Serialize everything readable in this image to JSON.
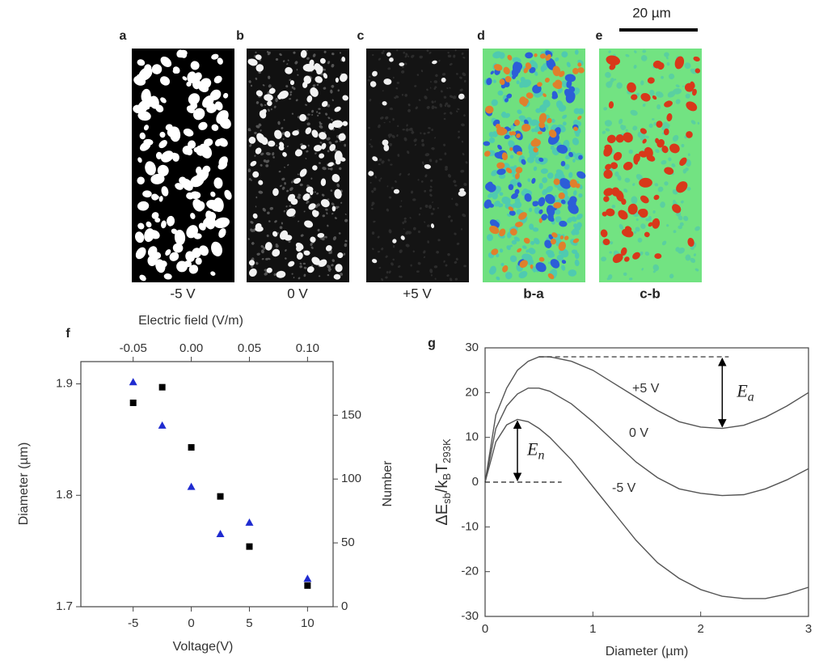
{
  "panels": [
    {
      "label": "a",
      "caption": "-5 V"
    },
    {
      "label": "b",
      "caption": "0 V"
    },
    {
      "label": "c",
      "caption": "+5 V"
    },
    {
      "label": "d",
      "caption": "b-a"
    },
    {
      "label": "e",
      "caption": "c-b"
    }
  ],
  "scale_bar": "20 µm",
  "chart_data": [
    {
      "type": "scatter",
      "panel": "f",
      "x_label": "Voltage(V)",
      "x2_label": "Electric field (V/m)",
      "y_label": "Diameter (µm)",
      "y2_label": "Number",
      "x": [
        -5,
        -2.5,
        0,
        2.5,
        5,
        10
      ],
      "series": [
        {
          "color": "#000000",
          "marker": "square",
          "values": [
            1.883,
            1.897,
            1.843,
            1.799,
            1.754,
            1.719
          ]
        },
        {
          "color": "#1f2bd0",
          "marker": "triangle",
          "axis": "y2",
          "values": [
            176,
            142,
            94,
            57,
            66,
            22
          ]
        }
      ],
      "xlim": [
        -9.5,
        12.2
      ],
      "xticks": [
        -5,
        0,
        5,
        10
      ],
      "x2lim": [
        -0.095,
        0.122
      ],
      "x2ticks": [
        -0.05,
        {
          "value": 0,
          "label": "0.00"
        },
        0.05,
        {
          "value": 0.1,
          "label": "0.10"
        }
      ],
      "ylim": [
        1.7,
        1.92
      ],
      "yticks": [
        1.7,
        1.8,
        1.9
      ],
      "y2lim": [
        0,
        192
      ],
      "y2ticks": [
        0,
        50,
        100,
        150
      ]
    },
    {
      "type": "line",
      "panel": "g",
      "x_label": "Diameter (µm)",
      "y_label_parts": [
        "ΔE",
        "sb",
        "/k",
        "B",
        "T",
        "293K"
      ],
      "x": [
        0,
        0.1,
        0.2,
        0.3,
        0.4,
        0.5,
        0.6,
        0.8,
        1.0,
        1.2,
        1.4,
        1.6,
        1.8,
        2.0,
        2.2,
        2.4,
        2.6,
        2.8,
        3.0
      ],
      "series": [
        {
          "name": "+5 V",
          "color": "#555555",
          "values": [
            0,
            15,
            21,
            25,
            27,
            28,
            28,
            27,
            25,
            22,
            19,
            16,
            13.5,
            12.3,
            12,
            12.7,
            14.5,
            17,
            20
          ]
        },
        {
          "name": "0 V",
          "color": "#555555",
          "values": [
            0,
            12,
            17,
            19.7,
            21,
            21,
            20.3,
            17.5,
            13.5,
            9,
            4.5,
            1,
            -1.5,
            -2.5,
            -3,
            -2.8,
            -1.5,
            0.5,
            3
          ]
        },
        {
          "name": "-5 V",
          "color": "#555555",
          "values": [
            0,
            9,
            12.8,
            14,
            13.5,
            12,
            10,
            5,
            -1,
            -7,
            -13,
            -18,
            -21.5,
            -24,
            -25.5,
            -26,
            -26,
            -25,
            -23.5
          ]
        }
      ],
      "xlim": [
        0,
        3
      ],
      "xticks": [
        0,
        1,
        2,
        3
      ],
      "ylim": [
        -30,
        30
      ],
      "yticks": [
        30,
        20,
        10,
        0,
        -10,
        -20,
        -30
      ],
      "annotations": [
        {
          "symbol": "E",
          "subscript": "a"
        },
        {
          "symbol": "E",
          "subscript": "n"
        }
      ]
    }
  ]
}
